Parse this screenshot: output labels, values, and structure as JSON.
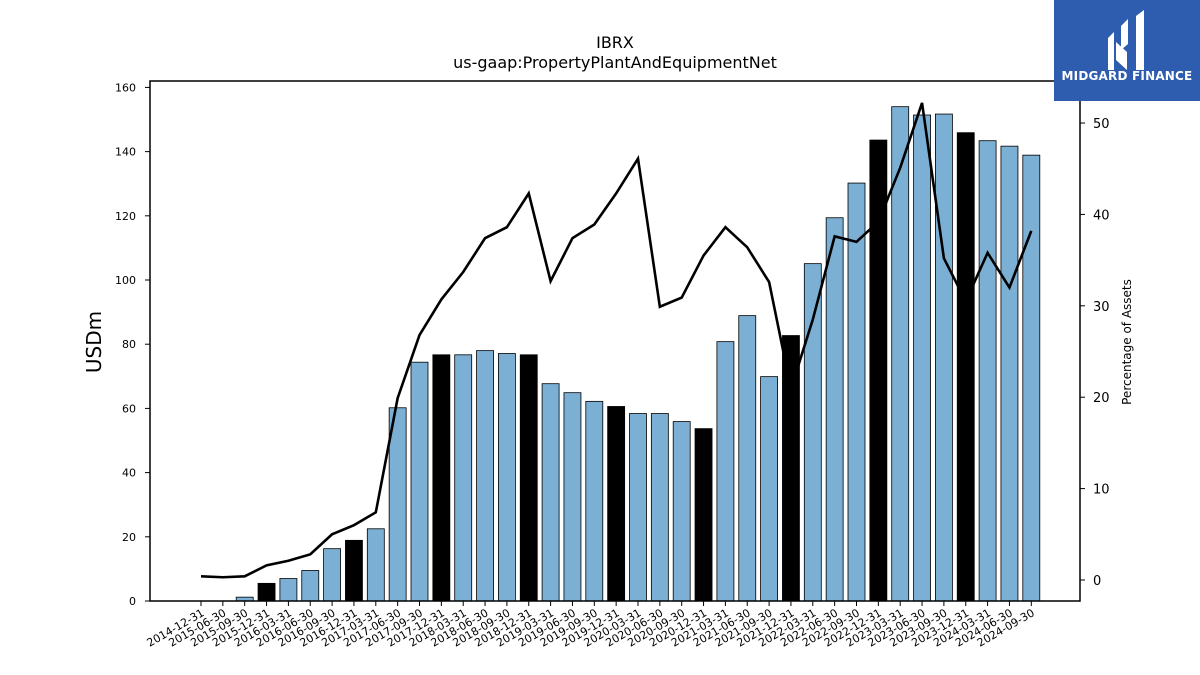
{
  "chart_data": {
    "type": "bar",
    "title": "IBRX",
    "subtitle": "us-gaap:PropertyPlantAndEquipmentNet",
    "ylabel": "USDm",
    "y2label": "Percentage of Assets",
    "ylim": [
      0,
      162
    ],
    "y2lim": [
      -2.3,
      54.6
    ],
    "yticks": [
      0,
      20,
      40,
      60,
      80,
      100,
      120,
      140,
      160
    ],
    "y2ticks": [
      0,
      10,
      20,
      30,
      40,
      50
    ],
    "grid": false,
    "categories": [
      "2014-12-31",
      "2015-06-30",
      "2015-09-30",
      "2015-12-31",
      "2016-03-31",
      "2016-06-30",
      "2016-09-30",
      "2016-12-31",
      "2017-03-31",
      "2017-06-30",
      "2017-09-30",
      "2017-12-31",
      "2018-03-31",
      "2018-06-30",
      "2018-09-30",
      "2018-12-31",
      "2019-03-31",
      "2019-06-30",
      "2019-09-30",
      "2019-12-31",
      "2020-03-31",
      "2020-06-30",
      "2020-09-30",
      "2020-12-31",
      "2021-03-31",
      "2021-06-30",
      "2021-09-30",
      "2021-12-31",
      "2022-03-31",
      "2022-06-30",
      "2022-09-30",
      "2022-12-31",
      "2023-03-31",
      "2023-06-30",
      "2023-09-30",
      "2023-12-31",
      "2024-03-31",
      "2024-06-30",
      "2024-09-30"
    ],
    "values": [
      0,
      0,
      1.2,
      5.5,
      7,
      9.5,
      16.3,
      18.9,
      22.5,
      60.2,
      74.4,
      76.7,
      76.7,
      78,
      77.1,
      76.7,
      67.7,
      64.9,
      62.2,
      60.6,
      58.4,
      58.4,
      55.9,
      53.7,
      80.8,
      88.9,
      69.9,
      82.7,
      105.1,
      119.4,
      130.2,
      143.6,
      154,
      151.4,
      151.7,
      145.9,
      143.4,
      141.7,
      138.9
    ],
    "year_end": [
      true,
      false,
      false,
      true,
      false,
      false,
      false,
      true,
      false,
      false,
      false,
      true,
      false,
      false,
      false,
      true,
      false,
      false,
      false,
      true,
      false,
      false,
      false,
      true,
      false,
      false,
      false,
      true,
      false,
      false,
      false,
      true,
      false,
      false,
      false,
      true,
      false,
      false,
      false
    ],
    "line_values": [
      0.4,
      0.3,
      0.4,
      1.6,
      2.1,
      2.8,
      5,
      6,
      7.4,
      19.9,
      26.8,
      30.7,
      33.7,
      37.4,
      38.6,
      42.3,
      32.7,
      37.4,
      38.9,
      42.3,
      46.1,
      29.9,
      30.9,
      35.5,
      38.6,
      36.4,
      32.6,
      20.9,
      28.5,
      37.6,
      37,
      39.2,
      45.1,
      52.2,
      35.2,
      30.5,
      35.8,
      32,
      38.2
    ],
    "colors": {
      "bar": "#7bafd4",
      "bar_year_end": "#000000",
      "line": "#000000"
    }
  },
  "logo": {
    "text": "MIDGARD FINANCE",
    "background": "#2e5cae"
  }
}
